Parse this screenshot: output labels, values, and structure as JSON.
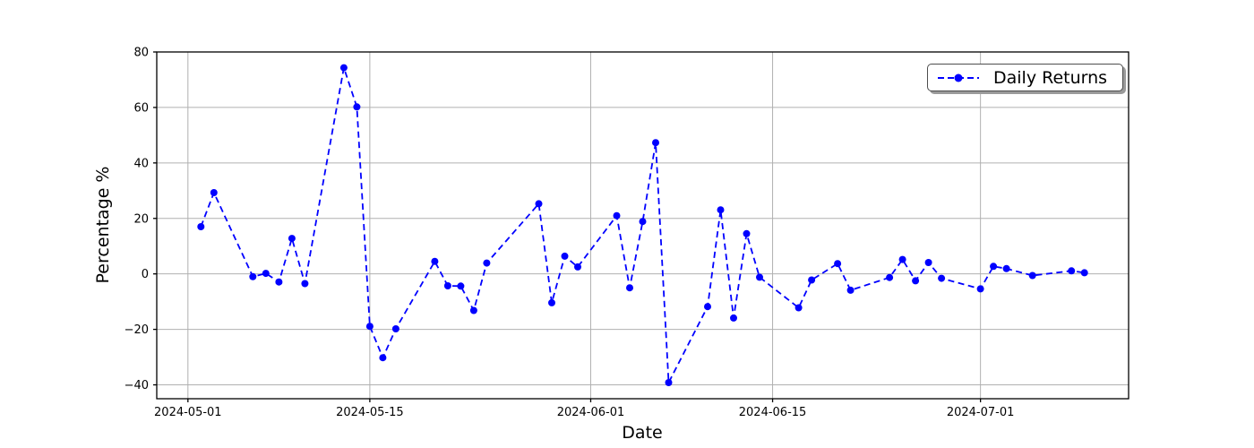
{
  "figure": {
    "background": "#ffffff"
  },
  "chart_data": {
    "type": "line",
    "title": "",
    "xlabel": "Date",
    "ylabel": "Percentage %",
    "legend": {
      "label": "Daily Returns",
      "position": "upper right"
    },
    "grid": true,
    "line": {
      "color": "#0000ff",
      "style": "dashed",
      "marker": "circle"
    },
    "colors": {
      "grid": "#b0b0b0",
      "spine": "#000000",
      "text": "#000000",
      "legend_shadow": "#9a9a9a"
    },
    "x_ticks": [
      "2024-05-01",
      "2024-05-15",
      "2024-06-01",
      "2024-06-15",
      "2024-07-01"
    ],
    "y_ticks": [
      80,
      60,
      40,
      20,
      0,
      -20,
      -40
    ],
    "ylim": [
      -45,
      80
    ],
    "xlim_days_from_first_tick": [
      -2.4,
      72.4
    ],
    "series": [
      {
        "name": "Daily Returns",
        "x": [
          "2024-05-02",
          "2024-05-03",
          "2024-05-06",
          "2024-05-07",
          "2024-05-08",
          "2024-05-09",
          "2024-05-10",
          "2024-05-13",
          "2024-05-14",
          "2024-05-15",
          "2024-05-16",
          "2024-05-17",
          "2024-05-20",
          "2024-05-21",
          "2024-05-22",
          "2024-05-23",
          "2024-05-24",
          "2024-05-28",
          "2024-05-29",
          "2024-05-30",
          "2024-05-31",
          "2024-06-03",
          "2024-06-04",
          "2024-06-05",
          "2024-06-06",
          "2024-06-07",
          "2024-06-10",
          "2024-06-11",
          "2024-06-12",
          "2024-06-13",
          "2024-06-14",
          "2024-06-17",
          "2024-06-18",
          "2024-06-20",
          "2024-06-21",
          "2024-06-24",
          "2024-06-25",
          "2024-06-26",
          "2024-06-27",
          "2024-06-28",
          "2024-07-01",
          "2024-07-02",
          "2024-07-03",
          "2024-07-05",
          "2024-07-08",
          "2024-07-09"
        ],
        "y": [
          17.0,
          29.3,
          -1.0,
          0.2,
          -2.9,
          12.8,
          -3.5,
          74.3,
          60.2,
          -18.9,
          -30.2,
          -19.8,
          4.5,
          -4.3,
          -4.4,
          -13.2,
          3.9,
          25.3,
          -10.4,
          6.4,
          2.5,
          21.0,
          -5.0,
          18.9,
          47.3,
          -39.2,
          -11.8,
          23.1,
          -15.9,
          14.5,
          -1.2,
          -12.2,
          -2.2,
          3.7,
          -5.9,
          -1.3,
          5.2,
          -2.5,
          4.1,
          -1.6,
          -5.4,
          2.7,
          1.9,
          -0.6,
          1.1,
          0.4
        ]
      }
    ]
  }
}
